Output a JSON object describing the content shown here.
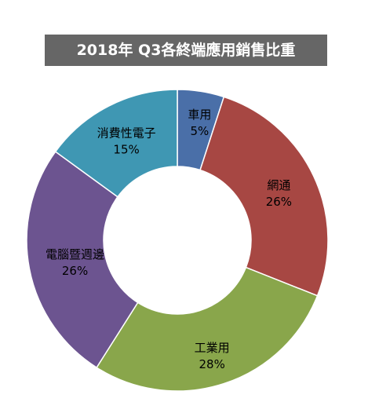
{
  "chart_data": {
    "type": "pie",
    "title": "2018年 Q3各終端應用銷售比重",
    "categories": [
      "車用",
      "網通",
      "工業用",
      "電腦暨週邊",
      "消費性電子"
    ],
    "values": [
      5,
      26,
      28,
      26,
      15
    ],
    "value_labels": [
      "5%",
      "26%",
      "28%",
      "26%",
      "15%"
    ],
    "colors": [
      "#4a6fa8",
      "#a74743",
      "#89a64b",
      "#6c5490",
      "#3f97b3"
    ],
    "donut": true
  }
}
